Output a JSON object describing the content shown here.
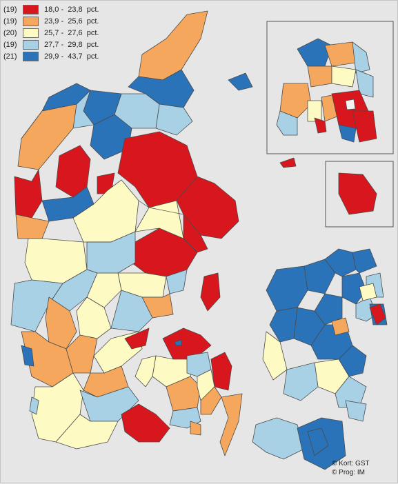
{
  "palette": {
    "red": "#d7161e",
    "orange": "#f5a85d",
    "yellow": "#fdfbc3",
    "lightblue": "#a8d1e6",
    "blue": "#2a73b8",
    "background": "#e6e6e6",
    "border": "#4a4a4a"
  },
  "legend": [
    {
      "count": "(19)",
      "range": "18,0 -  23,8  pct.",
      "color": "#d7161e"
    },
    {
      "count": "(19)",
      "range": "23,9 -  25,6  pct.",
      "color": "#f5a85d"
    },
    {
      "count": "(20)",
      "range": "25,7 -  27,6  pct.",
      "color": "#fdfbc3"
    },
    {
      "count": "(19)",
      "range": "27,7 -  29,8  pct.",
      "color": "#a8d1e6"
    },
    {
      "count": "(21)",
      "range": "29,9 -  43,7  pct.",
      "color": "#2a73b8"
    }
  ],
  "credits": {
    "map": "© Kort: GST",
    "prog": "© Prog: IM"
  }
}
